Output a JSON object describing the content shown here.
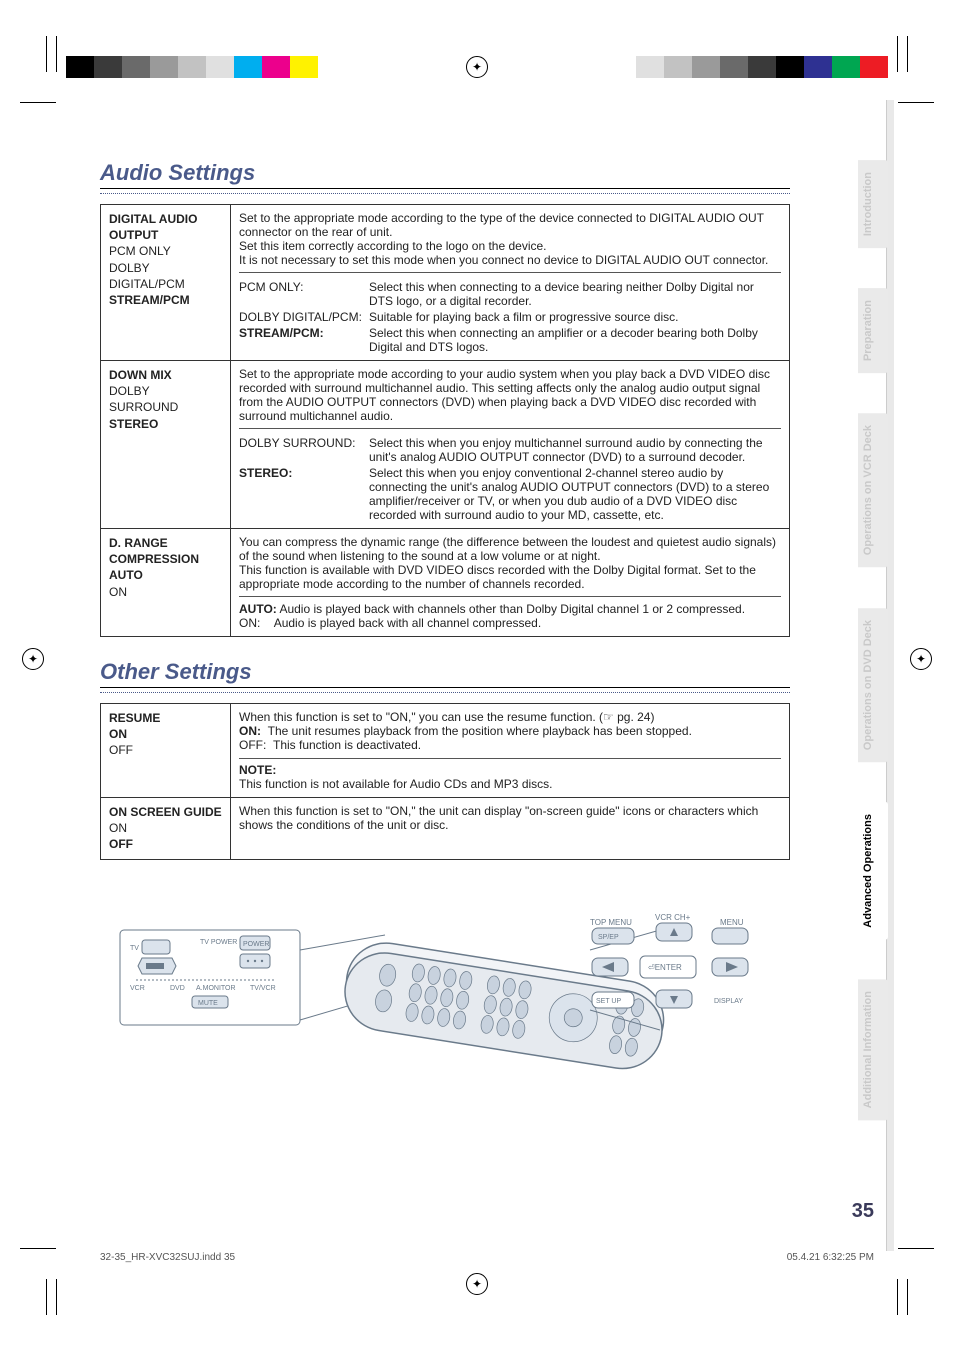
{
  "page": {
    "number": "35",
    "footer_left": "32-35_HR-XVC32SUJ.indd   35",
    "footer_right": "05.4.21   6:32:25 PM"
  },
  "styling": {
    "title_color": "#4a5a8a",
    "title_fontsize": 22,
    "body_fontsize": 12,
    "border_color": "#333333",
    "tab_dim_color": "#c9c9c9",
    "tab_dim_bg": "#eaeaea",
    "color_bar_left": [
      "#000000",
      "#3a3a3a",
      "#6a6a6a",
      "#9a9a9a",
      "#c2c2c2",
      "#e0e0e0",
      "#00aeef",
      "#ec008c",
      "#fff200"
    ],
    "color_bar_right": [
      "#ed1c24",
      "#00a651",
      "#2e3192",
      "#000000",
      "#3a3a3a",
      "#6a6a6a",
      "#9a9a9a",
      "#c2c2c2",
      "#e0e0e0"
    ]
  },
  "sections": {
    "audio": {
      "title": "Audio Settings",
      "rows": [
        {
          "label_bold1": "DIGITAL AUDIO OUTPUT",
          "label_plain": "PCM ONLY\nDOLBY DIGITAL/PCM",
          "label_bold2": "STREAM/PCM",
          "para1": "Set to the appropriate mode according to the type of the device connected to DIGITAL AUDIO OUT connector on the rear of unit.",
          "para2": "Set this item correctly according to the logo on the device.",
          "para3": "It is not necessary to set this mode when you connect no device to DIGITAL AUDIO OUT connector.",
          "opts": [
            {
              "k": "PCM ONLY:",
              "kb": true,
              "v": "Select this when connecting to a device bearing neither Dolby Digital nor DTS logo, or a digital recorder."
            },
            {
              "k": "DOLBY DIGITAL/PCM:",
              "kb": false,
              "v": "Suitable for playing back a film or progressive source disc."
            },
            {
              "k": "STREAM/PCM:",
              "kb": true,
              "v": "Select this when connecting an amplifier or a decoder bearing both Dolby Digital and DTS logos."
            }
          ]
        },
        {
          "label_bold1": "DOWN MIX",
          "label_plain": "DOLBY SURROUND",
          "label_bold2": "STEREO",
          "para1": "Set to the appropriate mode according to your audio system when you play back a DVD VIDEO disc recorded with surround multichannel audio. This setting affects only the analog audio output signal from the AUDIO OUTPUT connectors (DVD) when playing back a DVD VIDEO disc recorded with surround multichannel audio.",
          "opts": [
            {
              "k": "DOLBY SURROUND:",
              "kb": false,
              "v": "Select this when you enjoy multichannel surround audio by connecting the unit's analog AUDIO OUTPUT connector (DVD) to a surround decoder."
            },
            {
              "k": "STEREO:",
              "kb": true,
              "v": "Select this when you enjoy conventional 2-channel stereo audio by connecting the unit's analog AUDIO OUTPUT connectors (DVD) to a stereo amplifier/receiver or TV, or when you dub audio of a DVD VIDEO disc recorded with surround audio to your MD, cassette, etc."
            }
          ]
        },
        {
          "label_bold1": "D. RANGE COMPRESSION",
          "label_bold2": "AUTO",
          "label_plain2": "ON",
          "para1": "You can compress the dynamic range (the difference between the loudest and quietest audio signals) of the sound when listening to the sound at a low volume or at night.",
          "para2": "This function is available with DVD VIDEO discs recorded with the Dolby Digital format. Set to the appropriate mode according to the number of channels recorded.",
          "opts": [
            {
              "k": "AUTO:",
              "kb": true,
              "v": "Audio is played back with channels other than Dolby Digital channel 1 or 2 compressed."
            },
            {
              "k": "ON:",
              "kb": false,
              "v": "Audio is played back with all channel compressed."
            }
          ]
        }
      ]
    },
    "other": {
      "title": "Other Settings",
      "rows": [
        {
          "label_bold1": "RESUME",
          "label_bold2": "ON",
          "label_plain2": "OFF",
          "para1": "When this function is set to \"ON,\" you can use the resume function. (☞ pg. 24)",
          "opts_inline": [
            {
              "k": "ON:",
              "v": "The unit resumes playback from the position where playback has been stopped."
            },
            {
              "k": "OFF:",
              "v": "This function is deactivated."
            }
          ],
          "note_title": "NOTE:",
          "note_body": "This function is not available for Audio CDs and MP3 discs."
        },
        {
          "label_bold1": "ON SCREEN GUIDE",
          "label_plain": "ON",
          "label_bold2": "OFF",
          "para1": "When this function is set to \"ON,\" the unit can display \"on-screen guide\" icons or characters which shows the conditions of the unit or disc."
        }
      ]
    }
  },
  "tabs": [
    {
      "label": "Introduction",
      "active": false
    },
    {
      "label": "Preparation",
      "active": false
    },
    {
      "label": "Operations on VCR Deck",
      "active": false
    },
    {
      "label": "Operations on DVD Deck",
      "active": false
    },
    {
      "label": "Advanced Operations",
      "active": true
    },
    {
      "label": "Additional Information",
      "active": false
    }
  ],
  "remote": {
    "labels_left": [
      "TV",
      "VCR",
      "DVD",
      "TV POWER",
      "POWER",
      "A.MONITOR",
      "TV/VCR",
      "MUTE"
    ],
    "labels_right": [
      "TOP MENU",
      "VCR CH+",
      "MENU",
      "SP/EP",
      "ENTER",
      "SET UP",
      "DISPLAY"
    ],
    "btn_color": "#8aa0b8",
    "outline": "#6a7a8a"
  }
}
